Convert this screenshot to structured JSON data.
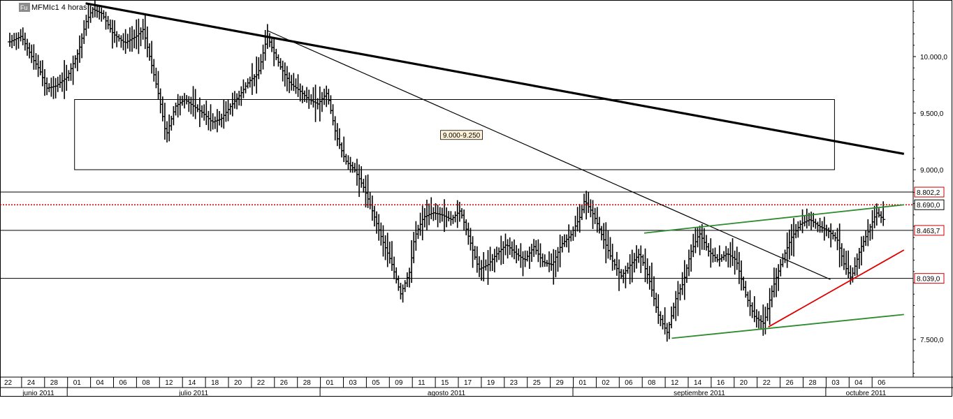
{
  "chart_data": {
    "type": "ohlc",
    "title": "MFMIc1 4 horas",
    "source_badge": "Fu",
    "y_axis": {
      "position": "right",
      "ylim": [
        7150,
        10500
      ],
      "ticks": [
        {
          "value": 10000,
          "label": "10.000,0"
        },
        {
          "value": 9500,
          "label": "9.500,0"
        },
        {
          "value": 9000,
          "label": "9.000,0"
        },
        {
          "value": 7500,
          "label": "7.500,0"
        }
      ]
    },
    "x_axis": {
      "days": [
        "22",
        "24",
        "28",
        "01",
        "04",
        "06",
        "08",
        "12",
        "14",
        "18",
        "20",
        "22",
        "26",
        "28",
        "01",
        "03",
        "05",
        "09",
        "11",
        "15",
        "17",
        "19",
        "23",
        "25",
        "29",
        "01",
        "02",
        "06",
        "08",
        "12",
        "14",
        "16",
        "20",
        "22",
        "26",
        "28",
        "03",
        "04",
        "06"
      ],
      "months": [
        "junio 2011",
        "julio 2011",
        "agosto 2011",
        "septiembre 2011",
        "octubre 2011"
      ],
      "month_start_index": [
        0,
        3,
        14,
        25,
        36
      ]
    },
    "levels": [
      {
        "value": 8802.2,
        "label": "8.802,2",
        "style": "solid",
        "color": "#000000",
        "badge_color": "#cc0000"
      },
      {
        "value": 8690.0,
        "label": "8.690,0",
        "style": "dotted",
        "color": "#cc0000",
        "badge_color": "#000000"
      },
      {
        "value": 8463.7,
        "label": "8.463,7",
        "style": "solid",
        "color": "#000000",
        "badge_color": "#cc0000"
      },
      {
        "value": 8039.0,
        "label": "8.039,0",
        "style": "solid",
        "color": "#000000",
        "badge_color": "#cc0000"
      }
    ],
    "zone": {
      "low": 9000,
      "high": 9250,
      "label": "9.000-9.250",
      "from_day": "01",
      "to_day": "03"
    },
    "trendlines": [
      {
        "name": "long-resistance",
        "color": "#000000",
        "weight": "heavy",
        "from": {
          "i": 3.3,
          "y": 10470
        },
        "to": {
          "i": 38.9,
          "y": 9140
        }
      },
      {
        "name": "descending-thin",
        "color": "#000000",
        "weight": "thin",
        "from": {
          "i": 11.2,
          "y": 10230
        },
        "to": {
          "i": 35.7,
          "y": 8030
        }
      },
      {
        "name": "upper-channel",
        "color": "#2e8b2e",
        "weight": "normal",
        "from": {
          "i": 27.6,
          "y": 8440
        },
        "to": {
          "i": 38.9,
          "y": 8690
        }
      },
      {
        "name": "lower-channel",
        "color": "#2e8b2e",
        "weight": "normal",
        "from": {
          "i": 28.8,
          "y": 7510
        },
        "to": {
          "i": 38.9,
          "y": 7720
        }
      },
      {
        "name": "support-red",
        "color": "#e00000",
        "weight": "normal",
        "from": {
          "i": 33.0,
          "y": 7610
        },
        "to": {
          "i": 38.9,
          "y": 8290
        }
      }
    ],
    "prices": [
      [
        0.0,
        10130
      ],
      [
        0.5,
        10180
      ],
      [
        1.0,
        9980
      ],
      [
        1.3,
        9880
      ],
      [
        1.6,
        9720
      ],
      [
        2.0,
        9740
      ],
      [
        2.5,
        9820
      ],
      [
        3.0,
        10050
      ],
      [
        3.3,
        10300
      ],
      [
        3.6,
        10420
      ],
      [
        4.0,
        10380
      ],
      [
        4.5,
        10200
      ],
      [
        5.0,
        10120
      ],
      [
        5.5,
        10180
      ],
      [
        5.8,
        10240
      ],
      [
        6.2,
        9900
      ],
      [
        6.5,
        9640
      ],
      [
        6.8,
        9300
      ],
      [
        7.2,
        9560
      ],
      [
        7.6,
        9620
      ],
      [
        8.0,
        9560
      ],
      [
        8.4,
        9500
      ],
      [
        8.8,
        9420
      ],
      [
        9.2,
        9450
      ],
      [
        9.6,
        9560
      ],
      [
        10.0,
        9660
      ],
      [
        10.4,
        9780
      ],
      [
        10.8,
        9850
      ],
      [
        11.2,
        10180
      ],
      [
        11.5,
        10030
      ],
      [
        11.8,
        9900
      ],
      [
        12.2,
        9760
      ],
      [
        12.6,
        9700
      ],
      [
        13.0,
        9620
      ],
      [
        13.4,
        9580
      ],
      [
        13.8,
        9680
      ],
      [
        14.2,
        9300
      ],
      [
        14.6,
        9080
      ],
      [
        15.0,
        9000
      ],
      [
        15.4,
        8840
      ],
      [
        15.8,
        8620
      ],
      [
        16.2,
        8380
      ],
      [
        16.6,
        8180
      ],
      [
        17.0,
        7900
      ],
      [
        17.4,
        8100
      ],
      [
        17.6,
        8400
      ],
      [
        18.0,
        8580
      ],
      [
        18.4,
        8620
      ],
      [
        18.8,
        8600
      ],
      [
        19.2,
        8560
      ],
      [
        19.6,
        8640
      ],
      [
        20.0,
        8380
      ],
      [
        20.4,
        8120
      ],
      [
        20.8,
        8160
      ],
      [
        21.2,
        8260
      ],
      [
        21.6,
        8340
      ],
      [
        22.0,
        8260
      ],
      [
        22.4,
        8200
      ],
      [
        22.8,
        8320
      ],
      [
        23.2,
        8180
      ],
      [
        23.6,
        8160
      ],
      [
        24.0,
        8340
      ],
      [
        24.4,
        8420
      ],
      [
        24.8,
        8580
      ],
      [
        25.0,
        8730
      ],
      [
        25.4,
        8600
      ],
      [
        25.8,
        8400
      ],
      [
        26.2,
        8200
      ],
      [
        26.6,
        8060
      ],
      [
        27.0,
        8160
      ],
      [
        27.4,
        8260
      ],
      [
        27.8,
        8040
      ],
      [
        28.2,
        7720
      ],
      [
        28.6,
        7560
      ],
      [
        29.0,
        7880
      ],
      [
        29.3,
        8000
      ],
      [
        29.6,
        8260
      ],
      [
        30.0,
        8440
      ],
      [
        30.4,
        8280
      ],
      [
        30.8,
        8200
      ],
      [
        31.2,
        8260
      ],
      [
        31.6,
        8200
      ],
      [
        32.0,
        7900
      ],
      [
        32.4,
        7700
      ],
      [
        32.8,
        7640
      ],
      [
        33.2,
        7960
      ],
      [
        33.6,
        8200
      ],
      [
        34.0,
        8400
      ],
      [
        34.4,
        8520
      ],
      [
        34.8,
        8560
      ],
      [
        35.2,
        8500
      ],
      [
        35.6,
        8460
      ],
      [
        36.0,
        8380
      ],
      [
        36.3,
        8160
      ],
      [
        36.6,
        8040
      ],
      [
        37.0,
        8300
      ],
      [
        37.4,
        8480
      ],
      [
        37.7,
        8620
      ],
      [
        38.0,
        8560
      ]
    ]
  }
}
